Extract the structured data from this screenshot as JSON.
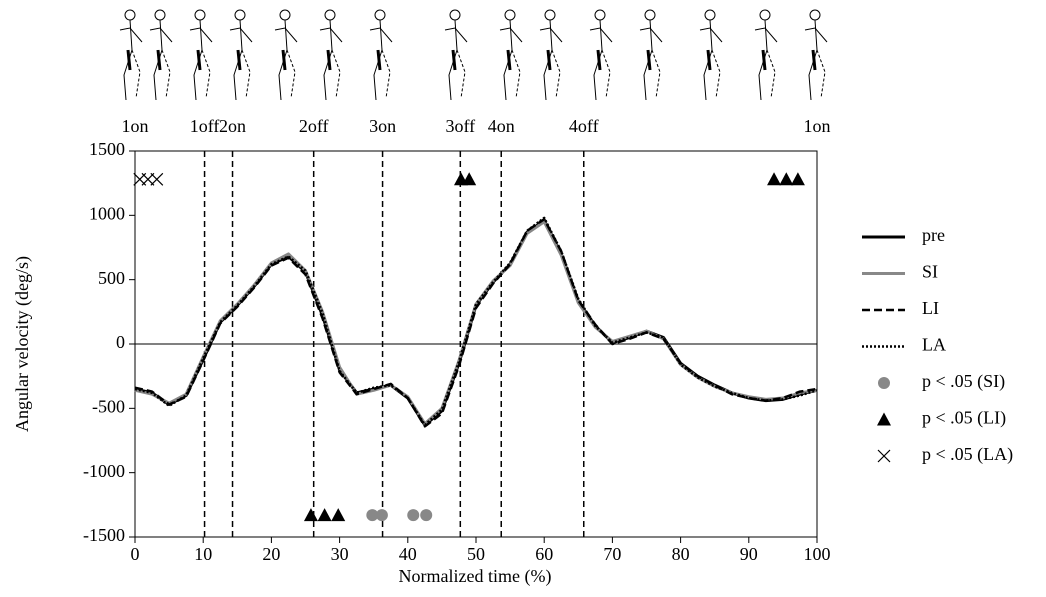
{
  "chart_data": {
    "type": "line",
    "xlabel": "Normalized time (%)",
    "ylabel": "Angular velocity (deg/s)",
    "xlim": [
      0,
      100
    ],
    "ylim": [
      -1500,
      1500
    ],
    "xticks": [
      0,
      10,
      20,
      30,
      40,
      50,
      60,
      70,
      80,
      90,
      100
    ],
    "yticks": [
      -1500,
      -1000,
      -500,
      0,
      500,
      1000,
      1500
    ],
    "events": [
      {
        "label": "1on",
        "x": 0
      },
      {
        "label": "1off",
        "x": 10.2
      },
      {
        "label": "2on",
        "x": 14.3
      },
      {
        "label": "2off",
        "x": 26.2
      },
      {
        "label": "3on",
        "x": 36.3
      },
      {
        "label": "3off",
        "x": 47.7
      },
      {
        "label": "4on",
        "x": 53.7
      },
      {
        "label": "4off",
        "x": 65.8
      },
      {
        "label": "1on",
        "x": 100
      }
    ],
    "x": [
      0,
      2.5,
      5,
      7.5,
      10,
      12.5,
      15,
      17.5,
      20,
      22.5,
      25,
      27.5,
      30,
      32.5,
      35,
      37.5,
      40,
      42.5,
      45,
      47.5,
      50,
      52.5,
      55,
      57.5,
      60,
      62.5,
      65,
      67.5,
      70,
      72.5,
      75,
      77.5,
      80,
      82.5,
      85,
      87.5,
      90,
      92.5,
      95,
      97.5,
      100
    ],
    "series": [
      {
        "name": "pre",
        "color": "#000000",
        "style": "solid",
        "values": [
          -350,
          -380,
          -470,
          -400,
          -120,
          170,
          300,
          450,
          620,
          680,
          560,
          220,
          -200,
          -380,
          -350,
          -320,
          -420,
          -630,
          -520,
          -150,
          300,
          480,
          620,
          870,
          960,
          700,
          330,
          140,
          10,
          50,
          100,
          50,
          -150,
          -250,
          -320,
          -380,
          -420,
          -440,
          -430,
          -390,
          -360
        ]
      },
      {
        "name": "SI",
        "color": "#888888",
        "style": "solid",
        "values": [
          -360,
          -390,
          -460,
          -390,
          -100,
          180,
          310,
          460,
          630,
          700,
          570,
          250,
          -180,
          -390,
          -360,
          -320,
          -410,
          -620,
          -500,
          -130,
          310,
          490,
          610,
          860,
          950,
          690,
          320,
          130,
          20,
          60,
          100,
          40,
          -160,
          -260,
          -330,
          -380,
          -410,
          -430,
          -420,
          -380,
          -360
        ]
      },
      {
        "name": "LI",
        "color": "#000000",
        "style": "dashed",
        "values": [
          -340,
          -370,
          -470,
          -410,
          -130,
          160,
          290,
          440,
          610,
          670,
          540,
          200,
          -220,
          -390,
          -350,
          -310,
          -420,
          -640,
          -540,
          -170,
          280,
          470,
          620,
          880,
          970,
          720,
          340,
          150,
          0,
          40,
          90,
          40,
          -150,
          -250,
          -320,
          -390,
          -420,
          -440,
          -420,
          -370,
          -350
        ]
      },
      {
        "name": "LA",
        "color": "#000000",
        "style": "dotted",
        "values": [
          -350,
          -380,
          -480,
          -400,
          -110,
          170,
          300,
          450,
          620,
          680,
          570,
          240,
          -210,
          -380,
          -340,
          -320,
          -420,
          -630,
          -510,
          -140,
          310,
          480,
          630,
          880,
          980,
          720,
          350,
          140,
          10,
          50,
          90,
          50,
          -160,
          -260,
          -330,
          -380,
          -420,
          -440,
          -430,
          -400,
          -360
        ]
      }
    ],
    "markers": [
      {
        "name": "p < .05 (SI)",
        "color": "#888888",
        "marker": "circle",
        "x": [
          34.8,
          36.2,
          40.8,
          42.7
        ],
        "y": [
          -1330,
          -1330,
          -1330,
          -1330
        ]
      },
      {
        "name": "p < .05 (LI)",
        "color": "#000000",
        "marker": "triangle",
        "x": [
          25.8,
          27.8,
          29.8,
          47.8,
          49.0,
          93.7,
          95.5,
          97.2
        ],
        "y": [
          -1330,
          -1330,
          -1330,
          1280,
          1280,
          1280,
          1280,
          1280
        ]
      },
      {
        "name": "p < .05 (LA)",
        "color": "#000000",
        "marker": "cross",
        "x": [
          0.7,
          1.9,
          3.2
        ],
        "y": [
          1280,
          1280,
          1280
        ]
      }
    ]
  }
}
